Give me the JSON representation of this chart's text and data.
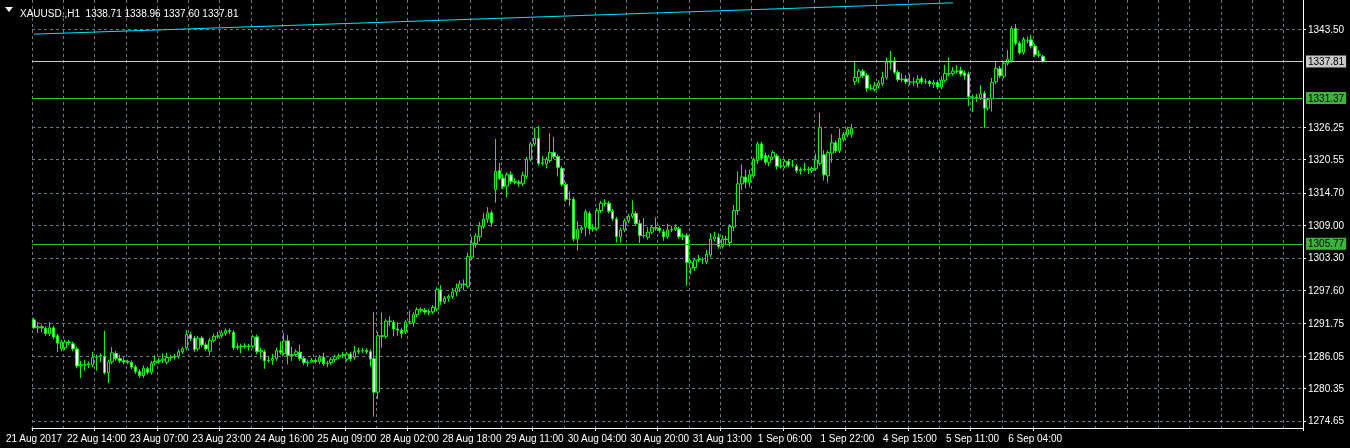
{
  "chart_data": {
    "type": "candlestick",
    "title": "XAUUSD.,H1  1338.71 1338.96 1337.60 1337.81",
    "color": "#00ff00",
    "grid": true,
    "categories": [
      "21 Aug 2017",
      null,
      null,
      null,
      null,
      null,
      null,
      null,
      null,
      null,
      null,
      null,
      null,
      null,
      null,
      null,
      "22 Aug 14:00",
      null,
      null,
      null,
      null,
      null,
      null,
      null,
      null,
      null,
      null,
      null,
      null,
      null,
      null,
      null,
      "23 Aug 07:00",
      null,
      null,
      null,
      null,
      null,
      null,
      null,
      null,
      null,
      null,
      null,
      null,
      null,
      null,
      null,
      "23 Aug 23:00",
      null,
      null,
      null,
      null,
      null,
      null,
      null,
      null,
      null,
      null,
      null,
      null,
      null,
      null,
      null,
      "24 Aug 16:00",
      null,
      null,
      null,
      null,
      null,
      null,
      null,
      null,
      null,
      null,
      null,
      null,
      null,
      null,
      null,
      "25 Aug 09:00",
      null,
      null,
      null,
      null,
      null,
      null,
      null,
      null,
      null,
      null,
      null,
      null,
      null,
      null,
      null,
      "28 Aug 02:00",
      null,
      null,
      null,
      null,
      null,
      null,
      null,
      null,
      null,
      null,
      null,
      null,
      null,
      null,
      null,
      "28 Aug 18:00",
      null,
      null,
      null,
      null,
      null,
      null,
      null,
      null,
      null,
      null,
      null,
      null,
      null,
      null,
      null,
      "29 Aug 11:00",
      null,
      null,
      null,
      null,
      null,
      null,
      null,
      null,
      null,
      null,
      null,
      null,
      null,
      null,
      null,
      "30 Aug 04:00",
      null,
      null,
      null,
      null,
      null,
      null,
      null,
      null,
      null,
      null,
      null,
      null,
      null,
      null,
      null,
      "30 Aug 20:00",
      null,
      null,
      null,
      null,
      null,
      null,
      null,
      null,
      null,
      null,
      null,
      null,
      null,
      null,
      null,
      "31 Aug 13:00",
      null,
      null,
      null,
      null,
      null,
      null,
      null,
      null,
      null,
      null,
      null,
      null,
      null,
      null,
      null,
      "1 Sep 06:00",
      null,
      null,
      null,
      null,
      null,
      null,
      null,
      null,
      null,
      null,
      null,
      null,
      null,
      null,
      null,
      "1 Sep 22:00",
      null,
      null,
      null,
      null,
      null,
      null,
      null,
      null,
      null,
      null,
      null,
      null,
      null,
      null,
      null,
      "4 Sep 15:00",
      null,
      null,
      null,
      null,
      null,
      null,
      null,
      null,
      null,
      null,
      null,
      null,
      null,
      null,
      null,
      "5 Sep 11:00",
      null,
      null,
      null,
      null,
      null,
      null,
      null,
      null,
      null,
      null,
      null,
      null,
      null,
      null,
      null,
      "6 Sep 04:00",
      null,
      null,
      null,
      null,
      null,
      null,
      null,
      null,
      null,
      null,
      null,
      null,
      null,
      null,
      null,
      null,
      null,
      null,
      null,
      null,
      null,
      null,
      null,
      null,
      null,
      null,
      null,
      null,
      null,
      null,
      null,
      null,
      null,
      null,
      null,
      null,
      null,
      null,
      null,
      null,
      null,
      null,
      null,
      null,
      null,
      null,
      null,
      null,
      null,
      null,
      null,
      null,
      null,
      null,
      null,
      null,
      null,
      null,
      null,
      null,
      null,
      null,
      null,
      null,
      null,
      null,
      null,
      null
    ],
    "ohlc": [
      [
        1292.4,
        1292.8,
        1290.8,
        1291.0
      ],
      [
        1291.0,
        1292.0,
        1290.1,
        1291.2
      ],
      [
        1291.2,
        1291.6,
        1290.2,
        1291.0
      ],
      [
        1290.9,
        1291.3,
        1289.6,
        1290.0
      ],
      [
        1290.0,
        1292.0,
        1289.6,
        1291.0
      ],
      [
        1291.0,
        1291.4,
        1289.0,
        1289.4
      ],
      [
        1289.6,
        1290.0,
        1286.8,
        1288.3
      ],
      [
        1287.3,
        1288.9,
        1286.9,
        1288.5
      ],
      [
        1287.5,
        1288.9,
        1287.1,
        1288.5
      ],
      [
        1288.5,
        1288.9,
        1288.0,
        1288.4
      ],
      [
        1288.2,
        1288.6,
        1286.9,
        1287.3
      ],
      [
        1287.3,
        1287.7,
        1283.9,
        1284.3
      ],
      [
        1284.3,
        1285.2,
        1282.2,
        1284.5
      ],
      [
        1284.5,
        1285.4,
        1283.5,
        1284.5
      ],
      [
        1284.5,
        1285.1,
        1283.9,
        1284.7
      ],
      [
        1284.5,
        1286.8,
        1284.1,
        1285.8
      ],
      [
        1285.8,
        1286.3,
        1283.5,
        1285.9
      ],
      [
        1285.9,
        1286.5,
        1285.0,
        1286.1
      ],
      [
        1286.0,
        1290.5,
        1282.8,
        1283.1
      ],
      [
        1283.1,
        1285.4,
        1281.3,
        1285.0
      ],
      [
        1285.0,
        1287.6,
        1284.6,
        1286.6
      ],
      [
        1286.5,
        1286.9,
        1285.2,
        1285.6
      ],
      [
        1285.6,
        1286.3,
        1284.8,
        1285.2
      ],
      [
        1285.2,
        1285.8,
        1284.6,
        1285.0
      ],
      [
        1285.0,
        1285.4,
        1284.6,
        1285.1
      ],
      [
        1284.9,
        1285.3,
        1283.7,
        1284.1
      ],
      [
        1284.1,
        1284.5,
        1282.9,
        1283.3
      ],
      [
        1283.3,
        1283.7,
        1282.2,
        1282.6
      ],
      [
        1282.6,
        1284.4,
        1282.2,
        1283.9
      ],
      [
        1283.8,
        1284.2,
        1282.8,
        1283.2
      ],
      [
        1283.2,
        1285.2,
        1282.8,
        1284.8
      ],
      [
        1284.8,
        1286.2,
        1284.4,
        1285.1
      ],
      [
        1285.1,
        1285.7,
        1284.7,
        1285.3
      ],
      [
        1285.3,
        1286.5,
        1284.8,
        1285.5
      ],
      [
        1285.0,
        1286.6,
        1284.6,
        1285.8
      ],
      [
        1285.8,
        1286.2,
        1285.2,
        1285.8
      ],
      [
        1285.8,
        1286.4,
        1285.4,
        1286.0
      ],
      [
        1286.0,
        1287.2,
        1285.6,
        1286.8
      ],
      [
        1286.8,
        1287.7,
        1286.4,
        1287.3
      ],
      [
        1287.5,
        1290.6,
        1287.1,
        1289.8
      ],
      [
        1289.8,
        1290.2,
        1288.7,
        1289.1
      ],
      [
        1289.2,
        1289.6,
        1286.8,
        1287.2
      ],
      [
        1287.3,
        1289.6,
        1286.9,
        1289.2
      ],
      [
        1289.2,
        1289.6,
        1287.6,
        1288.0
      ],
      [
        1288.0,
        1288.4,
        1286.9,
        1287.3
      ],
      [
        1286.9,
        1289.2,
        1286.1,
        1288.8
      ],
      [
        1288.8,
        1290.0,
        1288.4,
        1289.5
      ],
      [
        1289.5,
        1290.3,
        1289.1,
        1289.6
      ],
      [
        1289.6,
        1290.6,
        1289.2,
        1290.1
      ],
      [
        1290.0,
        1290.9,
        1289.6,
        1290.5
      ],
      [
        1290.5,
        1290.9,
        1289.9,
        1290.4
      ],
      [
        1290.2,
        1290.6,
        1287.1,
        1287.5
      ],
      [
        1287.5,
        1288.3,
        1287.1,
        1287.7
      ],
      [
        1287.7,
        1288.2,
        1286.5,
        1287.8
      ],
      [
        1287.8,
        1288.3,
        1287.3,
        1287.7
      ],
      [
        1287.7,
        1288.2,
        1287.0,
        1287.8
      ],
      [
        1287.8,
        1289.8,
        1287.4,
        1289.4
      ],
      [
        1289.4,
        1289.8,
        1286.4,
        1286.8
      ],
      [
        1286.8,
        1287.5,
        1285.6,
        1287.0
      ],
      [
        1286.8,
        1287.2,
        1283.8,
        1285.2
      ],
      [
        1285.2,
        1285.9,
        1284.9,
        1285.3
      ],
      [
        1285.3,
        1286.4,
        1284.5,
        1285.6
      ],
      [
        1285.6,
        1287.5,
        1285.2,
        1287.0
      ],
      [
        1287.0,
        1288.6,
        1286.3,
        1286.7
      ],
      [
        1286.5,
        1290.1,
        1286.1,
        1288.7
      ],
      [
        1288.7,
        1289.7,
        1284.6,
        1286.1
      ],
      [
        1286.1,
        1287.7,
        1285.2,
        1286.3
      ],
      [
        1286.3,
        1287.2,
        1285.9,
        1286.8
      ],
      [
        1286.7,
        1288.0,
        1285.2,
        1285.6
      ],
      [
        1285.6,
        1286.0,
        1284.5,
        1284.9
      ],
      [
        1284.9,
        1285.4,
        1284.2,
        1285.0
      ],
      [
        1285.0,
        1285.7,
        1284.9,
        1285.3
      ],
      [
        1285.3,
        1285.7,
        1284.7,
        1285.1
      ],
      [
        1285.1,
        1286.2,
        1284.6,
        1285.8
      ],
      [
        1285.8,
        1286.6,
        1284.3,
        1284.7
      ],
      [
        1284.7,
        1285.2,
        1284.1,
        1284.8
      ],
      [
        1284.9,
        1285.8,
        1284.5,
        1285.4
      ],
      [
        1285.4,
        1286.3,
        1285.0,
        1285.9
      ],
      [
        1285.9,
        1286.5,
        1285.5,
        1286.1
      ],
      [
        1286.1,
        1286.7,
        1285.7,
        1286.3
      ],
      [
        1285.5,
        1286.8,
        1285.1,
        1286.4
      ],
      [
        1286.4,
        1286.8,
        1285.1,
        1285.6
      ],
      [
        1285.8,
        1287.8,
        1285.4,
        1286.8
      ],
      [
        1286.8,
        1287.5,
        1286.4,
        1287.0
      ],
      [
        1287.0,
        1287.5,
        1286.6,
        1287.0
      ],
      [
        1287.0,
        1287.4,
        1286.4,
        1286.8
      ],
      [
        1286.8,
        1287.2,
        1284.2,
        1285.5
      ],
      [
        1285.6,
        1293.8,
        1275.4,
        1279.7
      ],
      [
        1279.7,
        1290.3,
        1278.5,
        1289.6
      ],
      [
        1289.6,
        1293.7,
        1287.5,
        1289.5
      ],
      [
        1289.5,
        1292.6,
        1289.1,
        1292.2
      ],
      [
        1292.2,
        1293.0,
        1291.3,
        1292.1
      ],
      [
        1292.0,
        1292.4,
        1289.5,
        1290.8
      ],
      [
        1290.8,
        1292.0,
        1289.6,
        1290.6
      ],
      [
        1290.6,
        1291.0,
        1289.2,
        1290.0
      ],
      [
        1290.3,
        1292.4,
        1289.9,
        1292.0
      ],
      [
        1292.0,
        1294.0,
        1291.6,
        1292.1
      ],
      [
        1291.9,
        1293.7,
        1291.2,
        1293.3
      ],
      [
        1293.3,
        1294.6,
        1292.9,
        1294.2
      ],
      [
        1294.2,
        1294.6,
        1293.7,
        1294.1
      ],
      [
        1294.1,
        1294.5,
        1293.4,
        1293.8
      ],
      [
        1293.8,
        1294.3,
        1293.2,
        1293.8
      ],
      [
        1293.8,
        1295.0,
        1293.4,
        1294.6
      ],
      [
        1294.3,
        1298.1,
        1293.9,
        1297.7
      ],
      [
        1297.7,
        1298.5,
        1295.0,
        1295.6
      ],
      [
        1295.6,
        1296.6,
        1295.2,
        1296.2
      ],
      [
        1296.2,
        1296.9,
        1295.6,
        1296.5
      ],
      [
        1296.5,
        1298.0,
        1296.1,
        1297.3
      ],
      [
        1297.3,
        1298.8,
        1296.5,
        1298.0
      ],
      [
        1298.0,
        1299.3,
        1297.3,
        1298.7
      ],
      [
        1298.7,
        1299.5,
        1297.6,
        1298.6
      ],
      [
        1298.3,
        1304.2,
        1297.9,
        1303.5
      ],
      [
        1303.4,
        1307.0,
        1302.9,
        1305.9
      ],
      [
        1305.8,
        1307.6,
        1305.1,
        1307.1
      ],
      [
        1307.0,
        1309.6,
        1306.2,
        1308.9
      ],
      [
        1308.8,
        1311.2,
        1308.4,
        1310.1
      ],
      [
        1310.1,
        1312.2,
        1309.4,
        1311.2
      ],
      [
        1311.2,
        1311.6,
        1308.8,
        1309.4
      ],
      [
        1315.3,
        1324.2,
        1313.0,
        1318.5
      ],
      [
        1318.6,
        1320.0,
        1317.0,
        1317.3
      ],
      [
        1317.3,
        1318.0,
        1315.4,
        1315.8
      ],
      [
        1315.9,
        1318.3,
        1313.9,
        1317.9
      ],
      [
        1317.9,
        1318.5,
        1316.3,
        1316.7
      ],
      [
        1316.7,
        1317.3,
        1316.2,
        1316.6
      ],
      [
        1316.6,
        1317.0,
        1315.8,
        1316.4
      ],
      [
        1316.3,
        1318.4,
        1315.9,
        1317.8
      ],
      [
        1317.6,
        1321.0,
        1317.2,
        1320.6
      ],
      [
        1320.6,
        1323.7,
        1320.2,
        1323.3
      ],
      [
        1323.3,
        1326.2,
        1322.9,
        1324.3
      ],
      [
        1324.3,
        1326.5,
        1319.5,
        1319.9
      ],
      [
        1319.9,
        1321.2,
        1319.5,
        1320.0
      ],
      [
        1319.8,
        1321.0,
        1319.0,
        1320.6
      ],
      [
        1320.4,
        1325.2,
        1320.0,
        1321.8
      ],
      [
        1321.8,
        1324.5,
        1320.7,
        1321.1
      ],
      [
        1321.1,
        1321.5,
        1317.6,
        1319.2
      ],
      [
        1319.0,
        1319.4,
        1315.8,
        1316.2
      ],
      [
        1316.2,
        1316.6,
        1313.2,
        1313.6
      ],
      [
        1313.6,
        1315.0,
        1312.4,
        1313.6
      ],
      [
        1313.6,
        1314.0,
        1306.2,
        1306.6
      ],
      [
        1306.6,
        1309.7,
        1304.6,
        1308.3
      ],
      [
        1308.3,
        1309.0,
        1307.6,
        1308.6
      ],
      [
        1308.7,
        1311.8,
        1307.1,
        1311.4
      ],
      [
        1311.1,
        1311.5,
        1307.4,
        1308.4
      ],
      [
        1308.4,
        1309.2,
        1307.9,
        1308.6
      ],
      [
        1308.5,
        1312.0,
        1308.1,
        1311.6
      ],
      [
        1311.6,
        1313.3,
        1311.2,
        1312.9
      ],
      [
        1312.9,
        1313.6,
        1312.3,
        1312.9
      ],
      [
        1312.9,
        1313.3,
        1311.1,
        1311.5
      ],
      [
        1311.5,
        1311.9,
        1309.8,
        1310.2
      ],
      [
        1310.1,
        1310.5,
        1306.0,
        1307.0
      ],
      [
        1307.0,
        1308.6,
        1306.0,
        1308.2
      ],
      [
        1308.2,
        1310.2,
        1307.8,
        1309.8
      ],
      [
        1309.8,
        1311.0,
        1309.4,
        1310.6
      ],
      [
        1310.6,
        1313.4,
        1310.2,
        1311.1
      ],
      [
        1311.1,
        1311.5,
        1308.9,
        1309.3
      ],
      [
        1309.3,
        1310.0,
        1305.9,
        1307.2
      ],
      [
        1307.2,
        1310.3,
        1306.8,
        1307.2
      ],
      [
        1306.9,
        1308.7,
        1306.5,
        1307.8
      ],
      [
        1307.8,
        1309.0,
        1307.4,
        1308.6
      ],
      [
        1308.6,
        1310.4,
        1308.0,
        1308.5
      ],
      [
        1308.5,
        1308.9,
        1307.7,
        1308.1
      ],
      [
        1307.9,
        1308.3,
        1306.3,
        1307.0
      ],
      [
        1307.0,
        1309.3,
        1306.6,
        1308.2
      ],
      [
        1308.2,
        1308.9,
        1307.8,
        1308.3
      ],
      [
        1308.3,
        1309.2,
        1308.0,
        1308.7
      ],
      [
        1308.4,
        1308.8,
        1306.6,
        1307.0
      ],
      [
        1307.0,
        1307.6,
        1306.4,
        1307.2
      ],
      [
        1307.2,
        1307.6,
        1298.4,
        1302.5
      ],
      [
        1301.5,
        1302.9,
        1300.4,
        1302.5
      ],
      [
        1301.6,
        1303.3,
        1301.0,
        1302.9
      ],
      [
        1302.9,
        1303.8,
        1302.5,
        1303.0
      ],
      [
        1303.0,
        1303.4,
        1302.2,
        1303.0
      ],
      [
        1302.6,
        1304.7,
        1302.2,
        1303.9
      ],
      [
        1303.8,
        1307.6,
        1303.4,
        1306.6
      ],
      [
        1306.6,
        1307.9,
        1306.2,
        1307.0
      ],
      [
        1306.9,
        1307.6,
        1304.9,
        1305.3
      ],
      [
        1305.3,
        1307.3,
        1304.9,
        1306.6
      ],
      [
        1306.6,
        1307.2,
        1305.6,
        1306.5
      ],
      [
        1306.0,
        1309.2,
        1305.3,
        1308.8
      ],
      [
        1308.7,
        1312.6,
        1308.0,
        1311.6
      ],
      [
        1311.6,
        1318.5,
        1310.8,
        1316.3
      ],
      [
        1316.3,
        1319.7,
        1315.2,
        1317.5
      ],
      [
        1317.5,
        1318.8,
        1315.5,
        1316.6
      ],
      [
        1316.6,
        1318.8,
        1315.8,
        1317.9
      ],
      [
        1317.7,
        1320.9,
        1317.3,
        1320.5
      ],
      [
        1320.4,
        1323.7,
        1319.8,
        1323.3
      ],
      [
        1323.3,
        1323.7,
        1320.4,
        1320.8
      ],
      [
        1321.3,
        1321.8,
        1319.7,
        1320.1
      ],
      [
        1320.1,
        1321.4,
        1319.4,
        1321.0
      ],
      [
        1321.0,
        1322.2,
        1320.6,
        1321.8
      ],
      [
        1321.2,
        1321.6,
        1318.8,
        1319.4
      ],
      [
        1319.4,
        1320.7,
        1319.0,
        1319.4
      ],
      [
        1319.4,
        1320.6,
        1319.0,
        1320.2
      ],
      [
        1320.2,
        1320.6,
        1319.2,
        1319.6
      ],
      [
        1319.6,
        1320.5,
        1319.2,
        1319.6
      ],
      [
        1319.4,
        1319.8,
        1318.2,
        1318.6
      ],
      [
        1318.6,
        1319.2,
        1317.9,
        1318.8
      ],
      [
        1318.8,
        1320.0,
        1318.5,
        1318.9
      ],
      [
        1318.9,
        1319.3,
        1318.0,
        1318.8
      ],
      [
        1318.6,
        1319.4,
        1318.2,
        1319.0
      ],
      [
        1319.0,
        1321.6,
        1318.6,
        1320.5
      ],
      [
        1319.9,
        1328.8,
        1319.5,
        1326.2
      ],
      [
        1321.4,
        1322.2,
        1316.9,
        1317.9
      ],
      [
        1317.7,
        1322.2,
        1316.5,
        1321.8
      ],
      [
        1321.7,
        1325.0,
        1320.0,
        1323.5
      ],
      [
        1323.5,
        1323.9,
        1321.7,
        1322.1
      ],
      [
        1322.1,
        1326.0,
        1321.7,
        1324.3
      ],
      [
        1324.1,
        1325.4,
        1323.7,
        1325.0
      ],
      [
        1324.9,
        1326.3,
        1324.5,
        1325.9
      ],
      [
        1325.0,
        1326.8,
        1324.4,
        1326.0
      ],
      [
        1334.3,
        1337.9,
        1333.7,
        1335.0
      ],
      [
        1335.0,
        1336.5,
        1334.0,
        1336.1
      ],
      [
        1336.1,
        1336.5,
        1334.9,
        1335.3
      ],
      [
        1335.4,
        1335.8,
        1332.5,
        1333.1
      ],
      [
        1333.1,
        1333.8,
        1332.7,
        1333.1
      ],
      [
        1332.9,
        1334.2,
        1332.5,
        1333.5
      ],
      [
        1333.5,
        1334.5,
        1333.1,
        1334.0
      ],
      [
        1333.9,
        1336.0,
        1333.5,
        1335.0
      ],
      [
        1335.0,
        1338.5,
        1334.6,
        1337.6
      ],
      [
        1337.6,
        1339.7,
        1336.3,
        1337.9
      ],
      [
        1337.9,
        1338.6,
        1335.5,
        1335.9
      ],
      [
        1335.9,
        1336.3,
        1334.2,
        1334.6
      ],
      [
        1334.6,
        1335.7,
        1334.2,
        1334.7
      ],
      [
        1334.7,
        1335.4,
        1333.8,
        1334.2
      ],
      [
        1334.2,
        1335.6,
        1333.6,
        1334.2
      ],
      [
        1334.2,
        1335.0,
        1333.5,
        1334.2
      ],
      [
        1334.0,
        1335.4,
        1333.2,
        1334.7
      ],
      [
        1334.8,
        1335.2,
        1333.8,
        1334.2
      ],
      [
        1334.2,
        1334.8,
        1333.8,
        1334.3
      ],
      [
        1334.3,
        1334.6,
        1333.4,
        1333.9
      ],
      [
        1333.8,
        1334.6,
        1333.1,
        1334.1
      ],
      [
        1334.1,
        1334.5,
        1332.9,
        1333.3
      ],
      [
        1333.3,
        1335.2,
        1332.9,
        1334.5
      ],
      [
        1334.5,
        1337.2,
        1334.1,
        1335.7
      ],
      [
        1335.7,
        1338.5,
        1335.2,
        1335.6
      ],
      [
        1335.7,
        1336.8,
        1335.3,
        1336.1
      ],
      [
        1336.1,
        1337.2,
        1335.7,
        1336.1
      ],
      [
        1336.2,
        1336.9,
        1335.2,
        1335.6
      ],
      [
        1335.8,
        1336.2,
        1334.6,
        1335.3
      ],
      [
        1335.6,
        1336.0,
        1330.0,
        1331.6
      ],
      [
        1331.6,
        1332.0,
        1328.9,
        1331.5
      ],
      [
        1331.5,
        1332.1,
        1330.7,
        1331.4
      ],
      [
        1331.4,
        1333.6,
        1331.0,
        1332.1
      ],
      [
        1332.2,
        1332.6,
        1326.1,
        1329.6
      ],
      [
        1329.6,
        1331.5,
        1329.2,
        1331.1
      ],
      [
        1331.2,
        1334.9,
        1329.0,
        1334.1
      ],
      [
        1334.2,
        1337.7,
        1333.8,
        1336.6
      ],
      [
        1336.5,
        1337.0,
        1334.9,
        1335.3
      ],
      [
        1335.2,
        1337.9,
        1334.8,
        1337.5
      ],
      [
        1337.5,
        1339.8,
        1337.1,
        1338.2
      ],
      [
        1338.0,
        1344.0,
        1337.6,
        1343.6
      ],
      [
        1343.6,
        1344.4,
        1340.6,
        1341.0
      ],
      [
        1341.0,
        1341.4,
        1339.0,
        1339.3
      ],
      [
        1339.4,
        1342.1,
        1339.0,
        1341.7
      ],
      [
        1341.5,
        1342.2,
        1341.0,
        1341.5
      ],
      [
        1341.6,
        1342.5,
        1340.1,
        1340.5
      ],
      [
        1340.5,
        1340.9,
        1338.6,
        1339.0
      ],
      [
        1339.0,
        1339.8,
        1338.5,
        1338.9
      ],
      [
        1338.71,
        1338.96,
        1337.6,
        1337.81
      ],
      null,
      null,
      null,
      null,
      null,
      null,
      null,
      null,
      null,
      null,
      null,
      null,
      null,
      null,
      null,
      null,
      null,
      null,
      null,
      null,
      null,
      null,
      null,
      null,
      null,
      null,
      null,
      null,
      null,
      null,
      null,
      null,
      null,
      null,
      null,
      null,
      null,
      null,
      null,
      null,
      null,
      null,
      null,
      null,
      null,
      null,
      null,
      null,
      null,
      null,
      null,
      null,
      null,
      null,
      null,
      null,
      null,
      null,
      null,
      null,
      null,
      null,
      null,
      null,
      null,
      null
    ],
    "series": [
      {
        "type": "line",
        "color": "#00e5ff",
        "values": [
          1342.6,
          null,
          null,
          null,
          null,
          null,
          null,
          null,
          null,
          null,
          null,
          null,
          null,
          null,
          null,
          null,
          null,
          null,
          null,
          null,
          null,
          null,
          null,
          null,
          null,
          null,
          null,
          null,
          null,
          null,
          null,
          null,
          null,
          null,
          null,
          null,
          null,
          null,
          null,
          null,
          null,
          null,
          null,
          null,
          null,
          null,
          null,
          null,
          null,
          null,
          null,
          null,
          null,
          null,
          null,
          null,
          null,
          null,
          null,
          null,
          null,
          null,
          null,
          null,
          null,
          null,
          null,
          null,
          null,
          null,
          null,
          null,
          null,
          null,
          null,
          null,
          null,
          null,
          null,
          null,
          null,
          null,
          null,
          null,
          null,
          null,
          null,
          null,
          null,
          null,
          null,
          null,
          null,
          null,
          null,
          null,
          null,
          null,
          null,
          null,
          null,
          null,
          null,
          null,
          null,
          null,
          null,
          null,
          null,
          null,
          null,
          null,
          null,
          null,
          null,
          null,
          null,
          null,
          null,
          null,
          null,
          null,
          null,
          null,
          null,
          null,
          null,
          null,
          null,
          null,
          null,
          null,
          null,
          null,
          null,
          null,
          null,
          null,
          null,
          null,
          null,
          null,
          null,
          null,
          null,
          null,
          null,
          null,
          null,
          null,
          null,
          null,
          null,
          null,
          null,
          null,
          null,
          null,
          null,
          null,
          null,
          null,
          null,
          null,
          null,
          null,
          null,
          null,
          null,
          null,
          null,
          null,
          null,
          null,
          null,
          null,
          null,
          null,
          null,
          null,
          null,
          null,
          null,
          null,
          null,
          null,
          null,
          null,
          null,
          null,
          null,
          null,
          null,
          null,
          null,
          null,
          null,
          null,
          null,
          null,
          null,
          null,
          null,
          null,
          null,
          null,
          null,
          null,
          null,
          null,
          null,
          null,
          null,
          null,
          null,
          null,
          null,
          null,
          null,
          null,
          null,
          null,
          null,
          null,
          null,
          null,
          null,
          null,
          null,
          null,
          null,
          null,
          null,
          null,
          null,
          1348.1,
          null,
          null,
          null,
          null,
          null,
          null,
          null,
          null,
          null,
          null,
          null,
          null,
          null,
          null,
          null,
          null,
          null,
          null,
          null,
          null,
          null,
          null,
          null,
          null,
          null,
          null,
          null,
          null,
          null,
          null,
          null,
          null,
          null,
          null,
          null,
          null,
          null,
          null,
          null,
          null,
          null,
          null,
          null,
          null,
          null,
          null,
          null,
          null,
          null,
          null,
          null,
          null,
          null,
          null,
          null,
          null,
          null,
          null,
          null,
          null,
          null,
          null,
          null,
          null,
          null,
          null,
          null,
          null,
          null,
          null,
          null,
          null,
          null,
          null,
          null,
          null,
          null,
          null,
          null,
          null,
          null,
          null,
          null,
          null,
          null,
          null,
          null,
          null,
          null
        ]
      }
    ],
    "ylim": [
      1273.4,
      1348.6
    ],
    "yticks": [
      {
        "value": 1343.5,
        "label": "1343.50"
      },
      {
        "value": 1326.25,
        "label": "1326.25"
      },
      {
        "value": 1320.55,
        "label": "1320.55"
      },
      {
        "value": 1314.7,
        "label": "1314.70"
      },
      {
        "value": 1309.0,
        "label": "1309.00"
      },
      {
        "value": 1303.3,
        "label": "1303.30"
      },
      {
        "value": 1297.6,
        "label": "1297.60"
      },
      {
        "value": 1291.75,
        "label": "1291.75"
      },
      {
        "value": 1286.05,
        "label": "1286.05"
      },
      {
        "value": 1280.35,
        "label": "1280.35"
      },
      {
        "value": 1274.65,
        "label": "1274.65"
      }
    ],
    "ref_lines": [
      {
        "axis": "y",
        "value": 1337.81,
        "label": "1337.81",
        "color": "#c8c8c8"
      },
      {
        "axis": "y",
        "value": 1331.37,
        "label": "1331.37",
        "color": "#3cb43c"
      },
      {
        "axis": "y",
        "value": 1305.77,
        "label": "1305.77",
        "color": "#3cb43c"
      }
    ]
  }
}
